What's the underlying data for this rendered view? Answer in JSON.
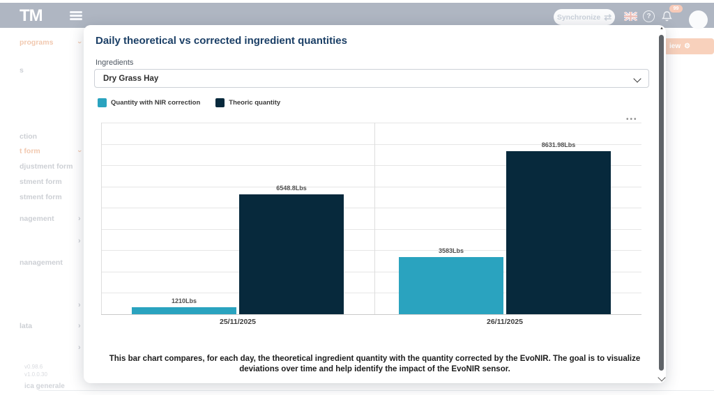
{
  "topbar": {
    "logo": "TM",
    "synchronize_label": "Synchronize",
    "sync_icon": "⇄",
    "help_glyph": "?",
    "notification_count": "99"
  },
  "background": {
    "sidebar_items": [
      {
        "label": "programs",
        "accent": true,
        "chevron": "down"
      },
      {
        "label": "s",
        "accent": false,
        "chevron": ""
      },
      {
        "label": "ction",
        "accent": false,
        "chevron": ""
      },
      {
        "label": "t form",
        "accent": true,
        "chevron": "down"
      },
      {
        "label": "djustment form",
        "accent": false,
        "chevron": ""
      },
      {
        "label": "stment form",
        "accent": false,
        "chevron": ""
      },
      {
        "label": "stment form",
        "accent": false,
        "chevron": ""
      },
      {
        "label": "nagement",
        "accent": false,
        "chevron": "right"
      },
      {
        "label": "",
        "accent": false,
        "chevron": "right"
      },
      {
        "label": "nanagement",
        "accent": false,
        "chevron": ""
      },
      {
        "label": "",
        "accent": false,
        "chevron": "right"
      },
      {
        "label": "lata",
        "accent": false,
        "chevron": "right"
      },
      {
        "label": "",
        "accent": false,
        "chevron": "right"
      }
    ],
    "versions": [
      "v0.98.6",
      "v1.0.0.30"
    ],
    "footer_text": "ica generale",
    "partial_button_label": "iew",
    "gear_glyph": "⚙"
  },
  "modal": {
    "title": "Daily theoretical vs corrected ingredient quantities",
    "ingredients_label": "Ingredients",
    "ingredient_selected": "Dry Grass Hay",
    "menu_dots": "•••",
    "caption": "This bar chart compares, for each day, the theoretical ingredient quantity with the quantity corrected by the EvoNIR. The goal is to visualize deviations over time and help identify the impact of the EvoNIR sensor."
  },
  "chart_data": {
    "type": "bar",
    "title": "Daily theoretical vs corrected ingredient quantities",
    "categories": [
      "25/11/2025",
      "26/11/2025"
    ],
    "series": [
      {
        "name": "Quantity with NIR correction",
        "color": "#2aa3bf",
        "values": [
          1210,
          3583
        ],
        "value_labels": [
          "1210Lbs",
          "3583Lbs"
        ]
      },
      {
        "name": "Theoric quantity",
        "color": "#07293c",
        "values": [
          6548.8,
          8631.98
        ],
        "value_labels": [
          "6548.8Lbs",
          "8631.98Lbs"
        ]
      }
    ],
    "unit": "Lbs",
    "ylim": [
      0,
      9500
    ],
    "grid": true,
    "legend_position": "top-left"
  }
}
